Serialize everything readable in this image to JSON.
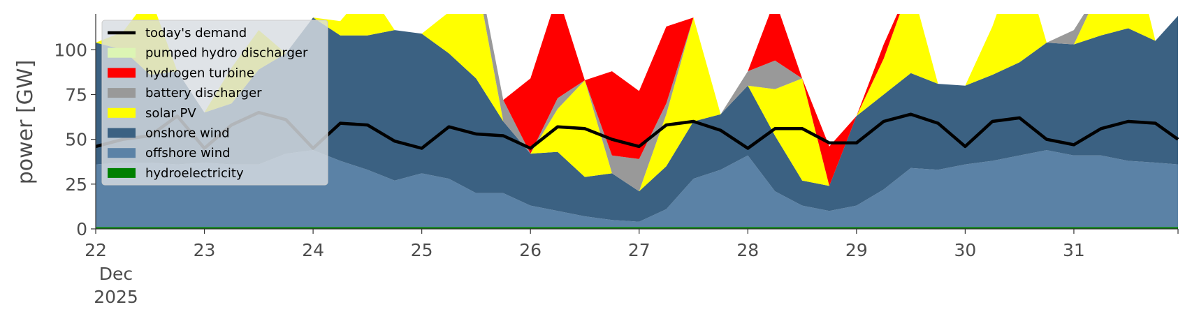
{
  "chart_data": {
    "type": "area",
    "title": "",
    "ylabel": "power [GW]",
    "xlabel": "",
    "ylim": [
      0,
      120
    ],
    "xlim": [
      0,
      239
    ],
    "y_ticks": [
      0,
      25,
      50,
      75,
      100
    ],
    "x_ticks": [
      {
        "hour": 0,
        "label": "22",
        "sub": [
          "Dec",
          "2025"
        ]
      },
      {
        "hour": 24,
        "label": "23"
      },
      {
        "hour": 48,
        "label": "24"
      },
      {
        "hour": 72,
        "label": "25"
      },
      {
        "hour": 96,
        "label": "26"
      },
      {
        "hour": 120,
        "label": "27"
      },
      {
        "hour": 144,
        "label": "28"
      },
      {
        "hour": 168,
        "label": "29"
      },
      {
        "hour": 192,
        "label": "30"
      },
      {
        "hour": 216,
        "label": "31"
      }
    ],
    "x_hours": [
      0,
      6,
      12,
      18,
      24,
      30,
      36,
      42,
      48,
      54,
      60,
      66,
      72,
      78,
      84,
      90,
      96,
      102,
      108,
      114,
      120,
      126,
      132,
      138,
      144,
      150,
      156,
      162,
      168,
      174,
      180,
      186,
      192,
      198,
      204,
      210,
      216,
      222,
      228,
      234,
      239
    ],
    "stack_order": [
      "hydroelectricity",
      "offshore wind",
      "onshore wind",
      "solar PV",
      "battery discharger",
      "hydrogen turbine",
      "pumped hydro discharger"
    ],
    "series": [
      {
        "name": "hydroelectricity",
        "color": "#008000",
        "values": [
          1,
          1,
          1,
          1,
          1,
          1,
          1,
          1,
          1,
          1,
          1,
          1,
          1,
          1,
          1,
          1,
          1,
          1,
          1,
          1,
          1,
          1,
          1,
          1,
          1,
          1,
          1,
          1,
          1,
          1,
          1,
          1,
          1,
          1,
          1,
          1,
          1,
          1,
          1,
          1,
          1
        ]
      },
      {
        "name": "offshore wind",
        "color": "#5b82a6",
        "values": [
          35,
          36,
          36,
          35,
          36,
          35,
          35,
          41,
          43,
          37,
          32,
          26,
          30,
          27,
          19,
          19,
          12,
          9,
          6,
          4,
          3,
          10,
          27,
          32,
          40,
          20,
          12,
          9,
          12,
          21,
          33,
          32,
          35,
          37,
          40,
          43,
          40,
          40,
          37,
          36,
          35
        ]
      },
      {
        "name": "onshore wind",
        "color": "#3b6182",
        "values": [
          68,
          63,
          49,
          52,
          28,
          34,
          53,
          56,
          74,
          70,
          75,
          84,
          78,
          70,
          64,
          40,
          29,
          33,
          22,
          26,
          17,
          24,
          32,
          31,
          39,
          31,
          14,
          14,
          50,
          53,
          53,
          48,
          44,
          48,
          52,
          60,
          62,
          67,
          74,
          68,
          83
        ]
      },
      {
        "name": "solar PV",
        "color": "#ffff00",
        "values": [
          0,
          10,
          44,
          0,
          0,
          20,
          22,
          0,
          0,
          8,
          26,
          0,
          0,
          23,
          58,
          0,
          0,
          24,
          54,
          0,
          0,
          29,
          58,
          0,
          0,
          26,
          57,
          0,
          0,
          20,
          50,
          0,
          0,
          27,
          63,
          0,
          0,
          27,
          55,
          0,
          0
        ]
      },
      {
        "name": "battery discharger",
        "color": "#999999",
        "values": [
          0,
          0,
          0,
          0,
          0,
          0,
          0,
          0,
          0,
          0,
          0,
          0,
          0,
          0,
          8,
          12,
          0,
          6,
          0,
          10,
          18,
          6,
          0,
          0,
          8,
          16,
          0,
          0,
          0,
          0,
          0,
          0,
          0,
          0,
          0,
          0,
          8,
          0,
          0,
          0,
          0
        ]
      },
      {
        "name": "hydrogen turbine",
        "color": "#ff0000",
        "values": [
          0,
          0,
          0,
          0,
          0,
          0,
          0,
          0,
          0,
          0,
          0,
          0,
          0,
          0,
          0,
          0,
          42,
          58,
          0,
          47,
          38,
          43,
          0,
          0,
          0,
          34,
          0,
          22,
          0,
          8,
          0,
          0,
          0,
          0,
          0,
          0,
          0,
          0,
          0,
          0,
          0
        ]
      },
      {
        "name": "pumped hydro discharger",
        "color": "#dcf5b4",
        "values": [
          0,
          0,
          0,
          0,
          0,
          0,
          0,
          0,
          0,
          0,
          0,
          0,
          0,
          0,
          0,
          0,
          0,
          0,
          0,
          0,
          0,
          0,
          0,
          0,
          0,
          0,
          0,
          0,
          0,
          0,
          0,
          0,
          0,
          0,
          0,
          0,
          0,
          0,
          0,
          0,
          0
        ]
      }
    ],
    "demand": {
      "name": "today's demand",
      "color": "#000000",
      "values": [
        46,
        50,
        52,
        63,
        45,
        58,
        65,
        61,
        45,
        59,
        58,
        49,
        45,
        57,
        53,
        52,
        45,
        57,
        56,
        50,
        46,
        58,
        60,
        55,
        45,
        56,
        56,
        48,
        48,
        60,
        64,
        59,
        46,
        60,
        62,
        50,
        47,
        56,
        60,
        59,
        50
      ]
    },
    "legend": {
      "placement": "upper-left",
      "entries": [
        {
          "label": "today's demand",
          "kind": "line",
          "color": "#000000"
        },
        {
          "label": "pumped hydro discharger",
          "kind": "patch",
          "color": "#dcf5b4"
        },
        {
          "label": "hydrogen turbine",
          "kind": "patch",
          "color": "#ff0000"
        },
        {
          "label": "battery discharger",
          "kind": "patch",
          "color": "#999999"
        },
        {
          "label": "solar PV",
          "kind": "patch",
          "color": "#ffff00"
        },
        {
          "label": "onshore wind",
          "kind": "patch",
          "color": "#3b6182"
        },
        {
          "label": "offshore wind",
          "kind": "patch",
          "color": "#5b82a6"
        },
        {
          "label": "hydroelectricity",
          "kind": "patch",
          "color": "#008000"
        }
      ]
    },
    "grid": false
  }
}
